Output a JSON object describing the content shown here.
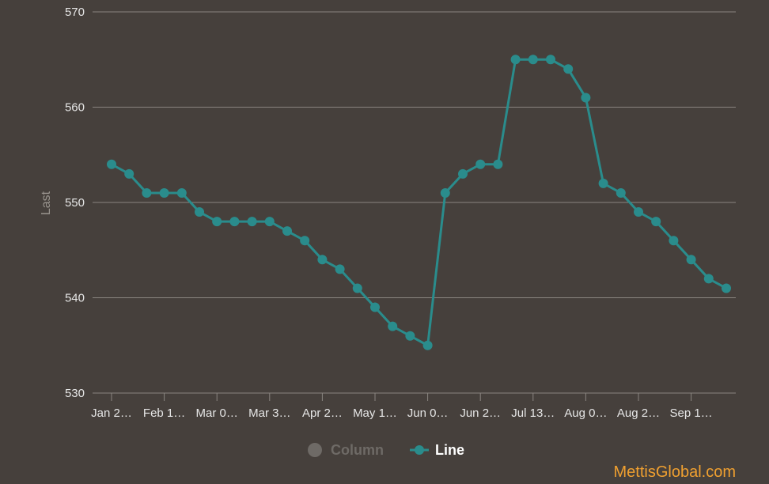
{
  "colors": {
    "background": "#46403c",
    "line_series": "#2a8c8c",
    "column_series_inactive": "#6e6a66",
    "axis_text": "#e6e6e6",
    "watermark": "#f0a030"
  },
  "watermark": "MettisGlobal.com",
  "chart_data": {
    "type": "line",
    "ylabel": "Last",
    "ylim": [
      530,
      570
    ],
    "yticks": [
      530,
      540,
      550,
      560,
      570
    ],
    "grid": true,
    "legend_placement": "bottom-center",
    "x_tick_labels": [
      "Jan 2…",
      "Feb 1…",
      "Mar 0…",
      "Mar 3…",
      "Apr 2…",
      "May 1…",
      "Jun 0…",
      "Jun 2…",
      "Jul 13…",
      "Aug 0…",
      "Aug 2…",
      "Sep 1…"
    ],
    "x_tick_indices": [
      0,
      3,
      6,
      9,
      12,
      15,
      18,
      21,
      24,
      27,
      30,
      33
    ],
    "legend": [
      {
        "name": "Column",
        "active": false
      },
      {
        "name": "Line",
        "active": true
      }
    ],
    "series": [
      {
        "name": "Line",
        "values": [
          554,
          553,
          551,
          551,
          551,
          549,
          548,
          548,
          548,
          548,
          547,
          546,
          544,
          543,
          541,
          539,
          537,
          536,
          535,
          551,
          553,
          554,
          554,
          565,
          565,
          565,
          564,
          561,
          552,
          551,
          549,
          548,
          546,
          544,
          542,
          541
        ]
      }
    ]
  }
}
